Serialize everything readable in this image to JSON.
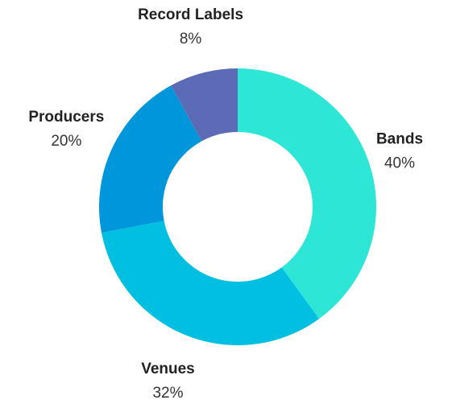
{
  "chart_data": {
    "type": "pie",
    "style": "donut",
    "legend": "none",
    "data_labels": "outside",
    "slices": [
      {
        "label": "Bands",
        "value": 40,
        "value_label": "40%",
        "color": "#2EE6D6"
      },
      {
        "label": "Venues",
        "value": 32,
        "value_label": "32%",
        "color": "#00BFE0"
      },
      {
        "label": "Producers",
        "value": 20,
        "value_label": "20%",
        "color": "#0096DB"
      },
      {
        "label": "Record Labels",
        "value": 8,
        "value_label": "8%",
        "color": "#5B6BB5"
      }
    ]
  }
}
